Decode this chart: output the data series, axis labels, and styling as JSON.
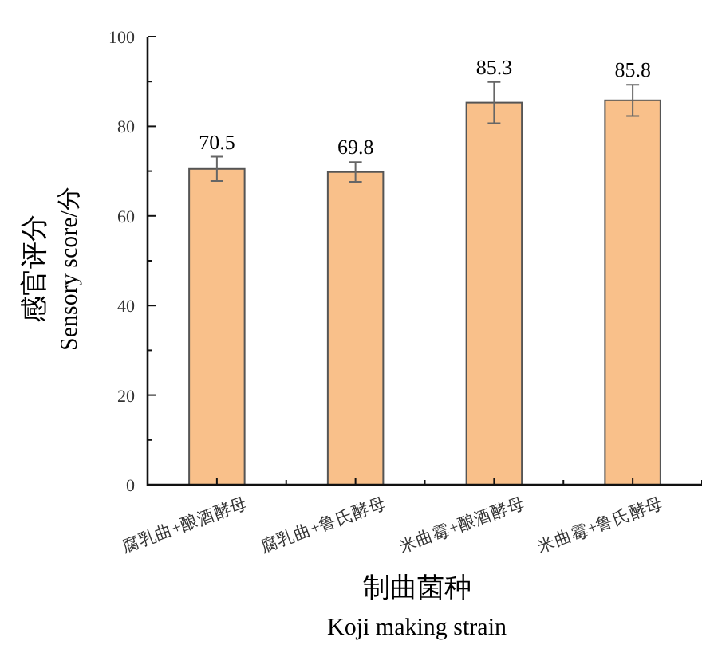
{
  "chart_data": {
    "type": "bar",
    "xlabel": "制曲菌种\nKoji making strain",
    "ylabel": "感官评分\nSensory score/分",
    "categories": [
      "腐乳曲+酿酒酵母",
      "腐乳曲+鲁氏酵母",
      "米曲霉+酿酒酵母",
      "米曲霉+鲁氏酵母"
    ],
    "values": [
      70.5,
      69.8,
      85.3,
      85.8
    ],
    "errors": [
      2.7,
      2.2,
      4.6,
      3.5
    ],
    "color": "#f9c08a",
    "ylim": [
      0,
      100
    ],
    "yticks": [
      0,
      20,
      40,
      60,
      80,
      100
    ],
    "data_labels": true
  }
}
